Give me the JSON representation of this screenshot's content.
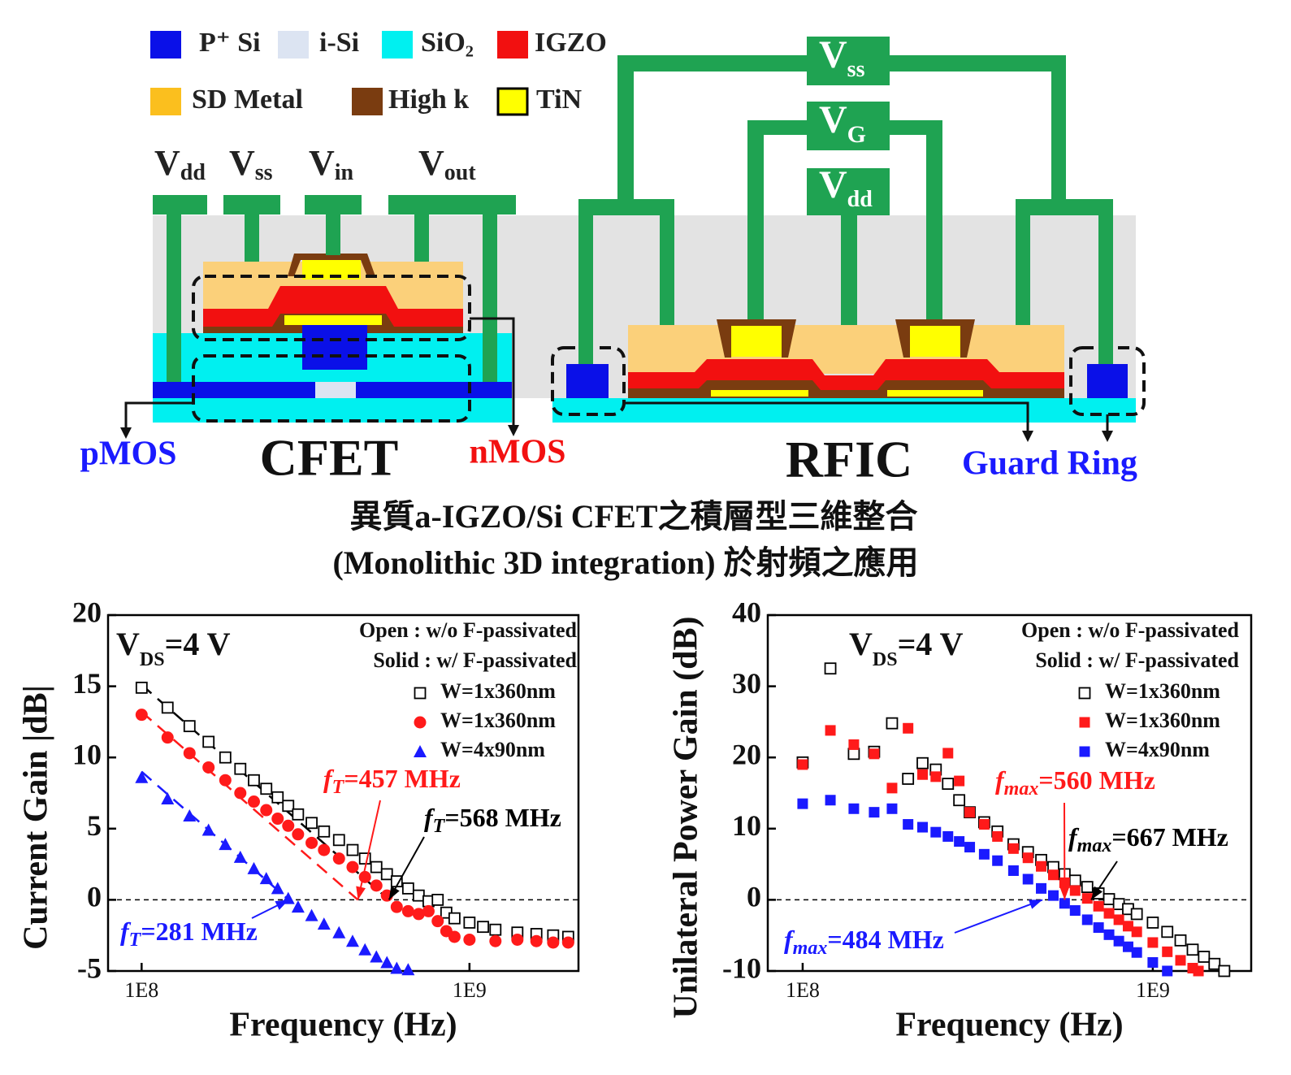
{
  "diagram": {
    "legend": [
      "P⁺ Si",
      "i-Si",
      "SiO₂",
      "IGZO",
      "SD Metal",
      "High k",
      "TiN"
    ],
    "terminals": [
      {
        "symbol": "V",
        "subscript": "dd"
      },
      {
        "symbol": "V",
        "subscript": "ss"
      },
      {
        "symbol": "V",
        "subscript": "in"
      },
      {
        "symbol": "V",
        "subscript": "out"
      }
    ],
    "rf_terminals": [
      {
        "symbol": "V",
        "subscript": "ss"
      },
      {
        "symbol": "V",
        "subscript": "G"
      },
      {
        "symbol": "V",
        "subscript": "dd"
      }
    ],
    "labels": [
      "pMOS",
      "CFET",
      "nMOS",
      "RFIC",
      "Guard Ring"
    ],
    "caption": [
      "異質a-IGZO/Si CFET之積層型三維整合",
      "(Monolithic 3D integration) 於射頻之應用"
    ]
  },
  "chart_data": [
    {
      "type": "scatter",
      "xscale": "log",
      "xlim": [
        79000000,
        2150000000
      ],
      "ylim": [
        -5,
        20
      ],
      "xticks": [
        {
          "value": 100000000,
          "label": "1E8"
        },
        {
          "value": 1000000000,
          "label": "1E9"
        }
      ],
      "yticks": [
        -5,
        0,
        5,
        10,
        15,
        20
      ],
      "hline": 0,
      "x_label": "Frequency (Hz)",
      "y_label": "Current Gain |dB|",
      "condition": {
        "symbol": "V",
        "subscript": "DS",
        "text": "=4 V"
      },
      "notes": [
        "Open : w/o F-passivated",
        "Solid : w/ F-passivated"
      ],
      "series": [
        {
          "name": "W=1x360nm",
          "marker": "open-square",
          "color": "#000000",
          "x": [
            100000000,
            120000000,
            140000000,
            160000000,
            180000000,
            200000000,
            220000000,
            240000000,
            260000000,
            280000000,
            300000000,
            330000000,
            360000000,
            400000000,
            440000000,
            480000000,
            520000000,
            560000000,
            600000000,
            650000000,
            700000000,
            750000000,
            800000000,
            850000000,
            900000000,
            1000000000,
            1100000000,
            1200000000,
            1400000000,
            1600000000,
            1800000000,
            2000000000
          ],
          "values": [
            14.9,
            13.5,
            12.2,
            11.1,
            10.0,
            9.2,
            8.4,
            7.8,
            7.2,
            6.6,
            6.0,
            5.4,
            4.8,
            4.2,
            3.5,
            2.9,
            2.3,
            1.8,
            1.3,
            0.8,
            0.3,
            -0.1,
            0.0,
            -0.9,
            -1.3,
            -1.6,
            -1.9,
            -2.1,
            -2.3,
            -2.4,
            -2.5,
            -2.6
          ]
        },
        {
          "name": "W=1x360nm",
          "marker": "circle",
          "color": "#ff1a1a",
          "x": [
            100000000,
            120000000,
            140000000,
            160000000,
            180000000,
            200000000,
            220000000,
            240000000,
            260000000,
            280000000,
            300000000,
            330000000,
            360000000,
            400000000,
            440000000,
            480000000,
            520000000,
            560000000,
            600000000,
            650000000,
            700000000,
            750000000,
            800000000,
            850000000,
            900000000,
            1000000000,
            1200000000,
            1400000000,
            1600000000,
            1800000000,
            2000000000
          ],
          "values": [
            13.0,
            11.4,
            10.3,
            9.3,
            8.4,
            7.5,
            6.9,
            6.3,
            5.7,
            5.2,
            4.6,
            4.0,
            3.5,
            2.9,
            2.3,
            1.6,
            1.0,
            0.3,
            -0.5,
            -0.8,
            -1.0,
            -0.8,
            -1.5,
            -2.2,
            -2.6,
            -2.8,
            -2.9,
            -2.8,
            -2.9,
            -3.0,
            -3.0
          ]
        },
        {
          "name": "W=4x90nm",
          "marker": "triangle",
          "color": "#1a1aff",
          "x": [
            100000000,
            120000000,
            140000000,
            160000000,
            180000000,
            200000000,
            220000000,
            240000000,
            260000000,
            280000000,
            300000000,
            330000000,
            360000000,
            400000000,
            440000000,
            480000000,
            520000000,
            560000000,
            600000000,
            650000000
          ],
          "values": [
            8.6,
            7.1,
            5.9,
            4.9,
            3.9,
            3.0,
            2.2,
            1.5,
            0.8,
            0.1,
            -0.5,
            -1.1,
            -1.7,
            -2.3,
            -2.9,
            -3.5,
            -4.0,
            -4.4,
            -4.8,
            -4.9
          ]
        }
      ],
      "fits": [
        {
          "color": "#000000",
          "x": [
            100000000,
            568000000
          ],
          "values": [
            15.1,
            0
          ]
        },
        {
          "color": "#ff1a1a",
          "x": [
            100000000,
            457000000
          ],
          "values": [
            13.2,
            0
          ]
        },
        {
          "color": "#1a1aff",
          "x": [
            100000000,
            281000000
          ],
          "values": [
            9.0,
            0
          ]
        }
      ],
      "annotations": [
        {
          "symbol": "f",
          "subscript": "T",
          "text": "=457 MHz",
          "color": "#ff1a1a",
          "x": 457000000,
          "y": 0
        },
        {
          "symbol": "f",
          "subscript": "T",
          "text": "=568 MHz",
          "color": "#000000",
          "x": 568000000,
          "y": 0
        },
        {
          "symbol": "f",
          "subscript": "T",
          "text": "=281 MHz",
          "color": "#1a1aff",
          "x": 281000000,
          "y": 0
        }
      ]
    },
    {
      "type": "scatter",
      "xscale": "log",
      "xlim": [
        79500000,
        1910000000
      ],
      "ylim": [
        -10,
        40
      ],
      "xticks": [
        {
          "value": 100000000,
          "label": "1E8"
        },
        {
          "value": 1000000000,
          "label": "1E9"
        }
      ],
      "yticks": [
        -10,
        0,
        10,
        20,
        30,
        40
      ],
      "hline": 0,
      "x_label": "Frequency (Hz)",
      "y_label": "Unilateral Power Gain (dB)",
      "condition": {
        "symbol": "V",
        "subscript": "DS",
        "text": "=4 V"
      },
      "notes": [
        "Open : w/o F-passivated",
        "Solid : w/ F-passivated"
      ],
      "series": [
        {
          "name": "W=1x360nm",
          "marker": "open-square",
          "color": "#000000",
          "x": [
            100000000,
            120000000,
            140000000,
            160000000,
            180000000,
            200000000,
            220000000,
            240000000,
            260000000,
            280000000,
            300000000,
            330000000,
            360000000,
            400000000,
            440000000,
            480000000,
            520000000,
            560000000,
            600000000,
            650000000,
            700000000,
            750000000,
            800000000,
            850000000,
            900000000,
            1000000000,
            1100000000,
            1200000000,
            1300000000,
            1400000000,
            1500000000,
            1600000000
          ],
          "values": [
            19.3,
            32.5,
            20.5,
            20.8,
            24.8,
            17.0,
            19.2,
            18.3,
            16.3,
            14.0,
            12.3,
            10.9,
            9.6,
            7.8,
            6.7,
            5.6,
            4.6,
            3.6,
            2.7,
            1.8,
            0.9,
            0.1,
            -0.6,
            -1.3,
            -2.0,
            -3.2,
            -4.5,
            -5.7,
            -7.0,
            -8.0,
            -9.0,
            -10.0
          ]
        },
        {
          "name": "W=1x360nm",
          "marker": "square",
          "color": "#ff1a1a",
          "x": [
            100000000,
            120000000,
            140000000,
            160000000,
            180000000,
            200000000,
            220000000,
            240000000,
            260000000,
            280000000,
            300000000,
            330000000,
            360000000,
            400000000,
            440000000,
            480000000,
            520000000,
            560000000,
            600000000,
            650000000,
            700000000,
            750000000,
            800000000,
            850000000,
            900000000,
            1000000000,
            1100000000,
            1200000000,
            1300000000,
            1350000000
          ],
          "values": [
            19.0,
            23.8,
            21.8,
            20.5,
            15.7,
            24.1,
            17.6,
            17.3,
            20.6,
            16.7,
            12.3,
            10.6,
            8.9,
            7.2,
            5.9,
            4.7,
            3.5,
            2.4,
            1.3,
            0.2,
            -0.9,
            -1.9,
            -2.8,
            -3.7,
            -4.5,
            -6.0,
            -7.3,
            -8.5,
            -9.6,
            -10.0
          ]
        },
        {
          "name": "W=4x90nm",
          "marker": "square",
          "color": "#1a1aff",
          "x": [
            100000000,
            120000000,
            140000000,
            160000000,
            180000000,
            200000000,
            220000000,
            240000000,
            260000000,
            280000000,
            300000000,
            330000000,
            360000000,
            400000000,
            440000000,
            480000000,
            520000000,
            560000000,
            600000000,
            650000000,
            700000000,
            750000000,
            800000000,
            850000000,
            900000000,
            1000000000,
            1100000000
          ],
          "values": [
            13.5,
            14.0,
            12.8,
            12.3,
            12.8,
            10.6,
            10.2,
            9.5,
            8.9,
            8.2,
            7.4,
            6.4,
            5.5,
            4.1,
            2.9,
            1.6,
            0.6,
            -0.5,
            -1.5,
            -2.8,
            -3.9,
            -4.9,
            -5.8,
            -6.6,
            -7.4,
            -8.8,
            -10.0
          ]
        }
      ],
      "annotations": [
        {
          "symbol": "f",
          "subscript": "max",
          "text": "=560 MHz",
          "color": "#ff1a1a",
          "x": 560000000,
          "y": 0
        },
        {
          "symbol": "f",
          "subscript": "max",
          "text": "=667 MHz",
          "color": "#000000",
          "x": 667000000,
          "y": 0
        },
        {
          "symbol": "f",
          "subscript": "max",
          "text": "=484 MHz",
          "color": "#1a1aff",
          "x": 484000000,
          "y": 0
        }
      ]
    }
  ]
}
